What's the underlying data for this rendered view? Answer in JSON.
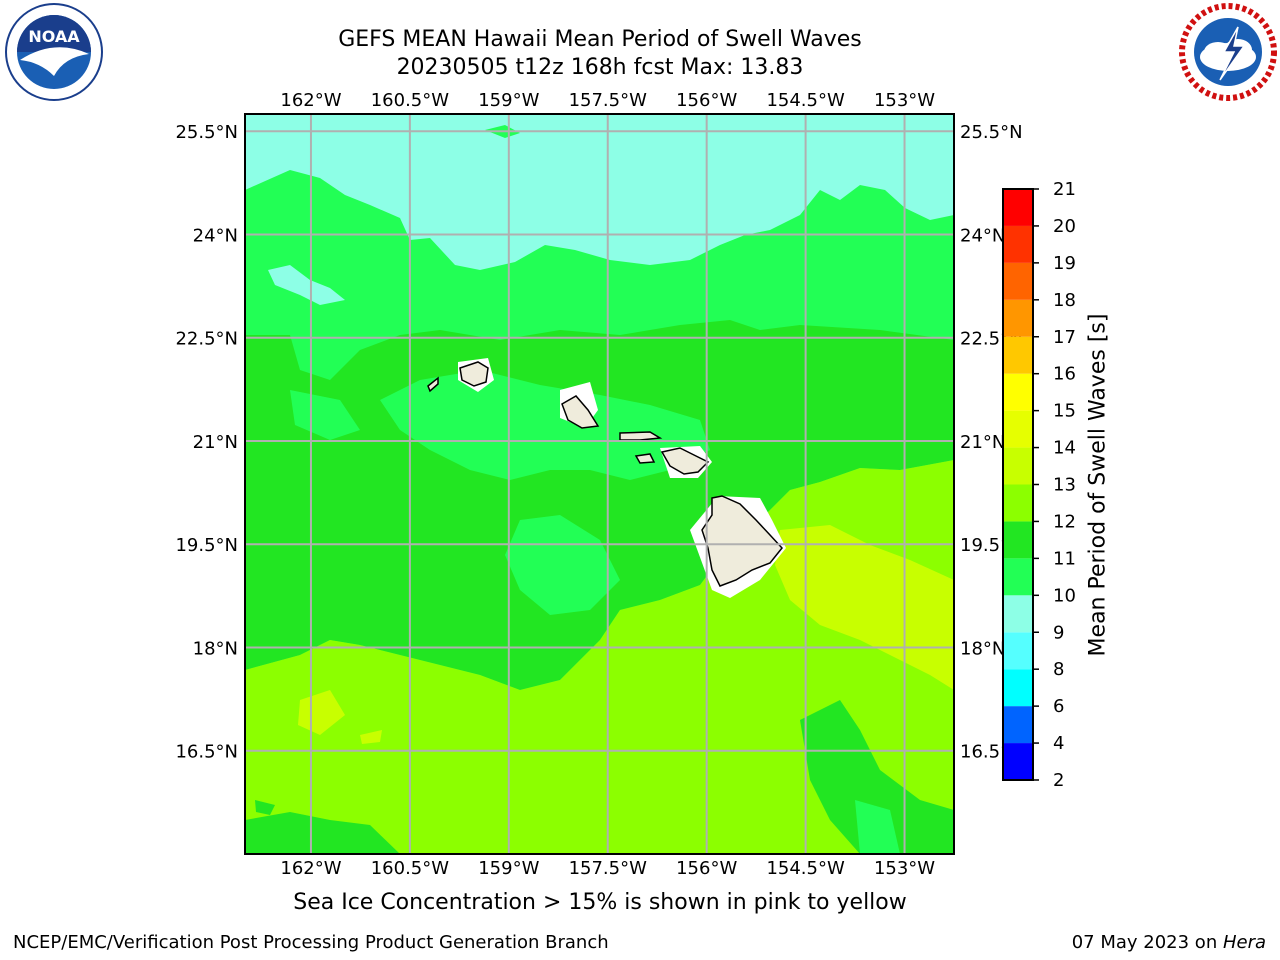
{
  "title": {
    "line1": "GEFS MEAN Hawaii Mean Period of Swell Waves",
    "line2": "20230505 t12z 168h fcst   Max: 13.83"
  },
  "logos": {
    "left": {
      "icon": "noaa-logo",
      "text": "NOAA",
      "ring_text": "NATIONAL OCEANIC AND ATMOSPHERIC ADMINISTRATION · U.S. DEPARTMENT OF COMMERCE"
    },
    "right": {
      "icon": "nws-logo",
      "ring_text": "NATIONAL WEATHER SERVICE"
    }
  },
  "map": {
    "lon_ticks": [
      "162°W",
      "160.5°W",
      "159°W",
      "157.5°W",
      "156°W",
      "154.5°W",
      "153°W"
    ],
    "lat_ticks": [
      "25.5°N",
      "24°N",
      "22.5°N",
      "21°N",
      "19.5°N",
      "18°N",
      "16.5°N"
    ],
    "lon_range": [
      -163,
      -152.25
    ],
    "lat_range": [
      15,
      25.75
    ],
    "colors": {
      "ocean_10_11": "#22ff55",
      "ocean_9_10": "#8dffe6",
      "ocean_11_12": "#22e622",
      "ocean_12_13": "#8cff00",
      "ocean_13_14": "#c8ff00",
      "land": "#efecdc",
      "grid": "#b0b0b0"
    }
  },
  "colorbar": {
    "label": "Mean Period of Swell Waves [s]",
    "ticks": [
      "2",
      "4",
      "6",
      "8",
      "9",
      "10",
      "11",
      "12",
      "13",
      "14",
      "15",
      "16",
      "17",
      "18",
      "19",
      "20",
      "21"
    ],
    "colors": [
      "#0000ff",
      "#0064ff",
      "#00ffff",
      "#55ffff",
      "#8dffe6",
      "#22ff55",
      "#22e622",
      "#8cff00",
      "#c8ff00",
      "#e6ff00",
      "#ffff00",
      "#ffc800",
      "#ff9600",
      "#ff6400",
      "#ff3200",
      "#ff0000"
    ]
  },
  "caption": "Sea Ice Concentration > 15% is shown in pink to yellow",
  "footer": {
    "left": "NCEP/EMC/Verification Post Processing Product Generation Branch",
    "right_date": "07 May 2023 on ",
    "right_host": "Hera"
  }
}
